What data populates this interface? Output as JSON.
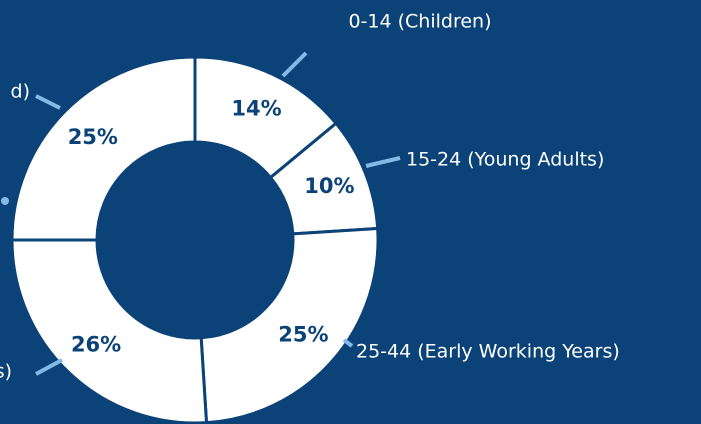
{
  "chart_data": {
    "type": "donut",
    "categories": [
      "0-14 (Children)",
      "15-24 (Young Adults)",
      "25-44 (Early Working Years)",
      "s)",
      "d)"
    ],
    "values": [
      14,
      10,
      25,
      26,
      25
    ],
    "value_labels": [
      "14%",
      "10%",
      "25%",
      "26%",
      "25%"
    ],
    "color": "#ffffff"
  }
}
